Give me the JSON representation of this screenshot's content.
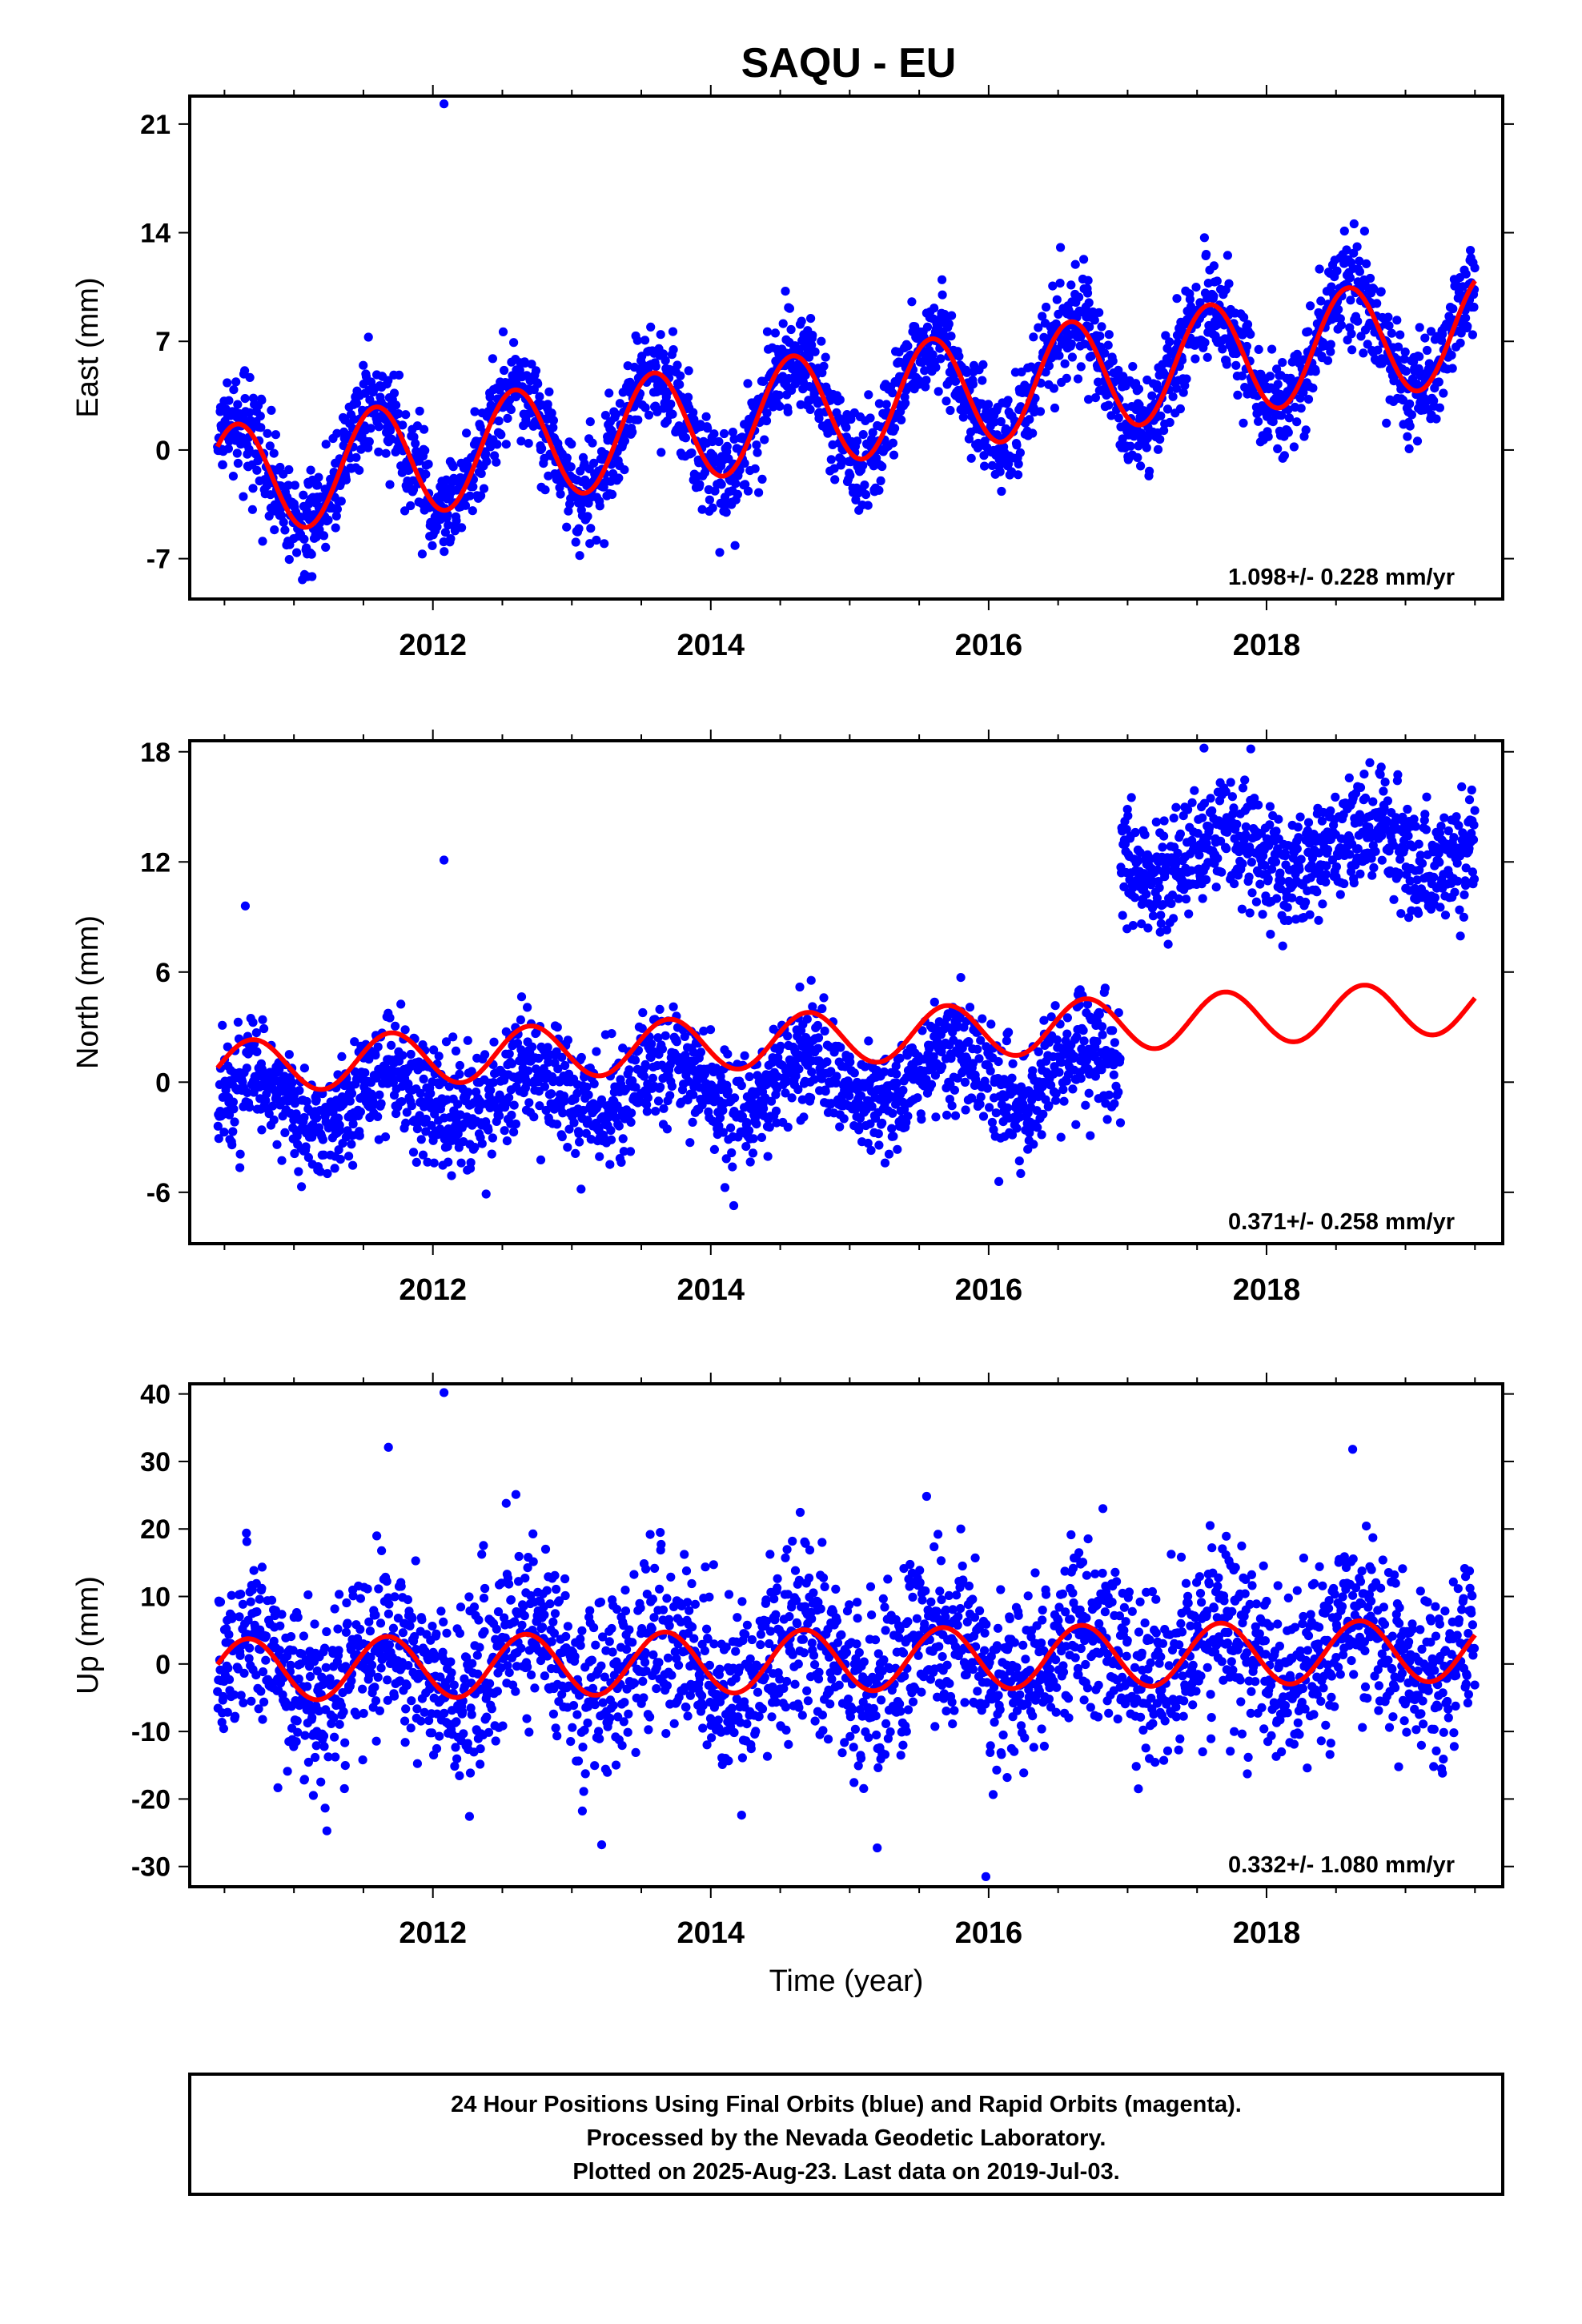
{
  "title": "SAQU - EU",
  "footer": {
    "lines": [
      "24 Hour Positions Using Final Orbits (blue) and Rapid Orbits (magenta).",
      "Processed by the Nevada Geodetic Laboratory.",
      "Plotted on 2025-Aug-23. Last data on 2019-Jul-03."
    ]
  },
  "colors": {
    "points": "#0000ff",
    "model": "#ff0000",
    "frame": "#000000"
  },
  "chart_data": [
    {
      "type": "scatter",
      "name": "east",
      "title": "",
      "xlabel": "",
      "ylabel": "East (mm)",
      "xlim": [
        2010.25,
        2019.7
      ],
      "ylim": [
        -9.6,
        22.8
      ],
      "xticks": [
        2012,
        2014,
        2016,
        2018
      ],
      "yticks": [
        -7,
        0,
        7,
        14,
        21
      ],
      "rate_label": "1.098+/- 0.228 mm/yr",
      "model": {
        "start": -2.3,
        "rate": 1.098,
        "amplitude": 3.6,
        "phase_year": 0.34,
        "offset_year": null,
        "offset": 0
      },
      "scatter": {
        "sigma": 1.6,
        "start_year": 2010.45,
        "end_year": 2019.5
      },
      "outliers": [
        {
          "x": 2012.08,
          "y": 22.3
        }
      ]
    },
    {
      "type": "scatter",
      "name": "north",
      "title": "",
      "xlabel": "",
      "ylabel": "North (mm)",
      "xlim": [
        2010.25,
        2019.7
      ],
      "ylim": [
        -8.8,
        18.6
      ],
      "xticks": [
        2012,
        2014,
        2016,
        2018
      ],
      "yticks": [
        -6,
        0,
        6,
        12,
        18
      ],
      "rate_label": "0.371+/- 0.258 mm/yr",
      "model": {
        "start": 0.7,
        "rate": 0.371,
        "amplitude": 1.45,
        "phase_year": 0.45,
        "offset_year": null,
        "offset": 0
      },
      "scatter": {
        "sigma": 1.55,
        "start_year": 2010.45,
        "end_year": 2019.5,
        "data_start": -1.2,
        "data_rate": 0.28,
        "step_year": 2016.95,
        "step_size": 11.5
      },
      "outliers": [
        {
          "x": 2012.08,
          "y": 12.1
        },
        {
          "x": 2010.65,
          "y": 9.6
        },
        {
          "x": 2017.55,
          "y": 18.2
        }
      ]
    },
    {
      "type": "scatter",
      "name": "up",
      "title": "",
      "xlabel": "Time (year)",
      "ylabel": "Up (mm)",
      "xlim": [
        2010.25,
        2019.7
      ],
      "ylim": [
        -33,
        41.5
      ],
      "xticks": [
        2012,
        2014,
        2016,
        2018
      ],
      "yticks": [
        -30,
        -20,
        -10,
        0,
        10,
        20,
        30,
        40
      ],
      "rate_label": "0.332+/- 1.080 mm/yr",
      "model": {
        "start": -1.0,
        "rate": 0.332,
        "amplitude": 4.6,
        "phase_year": 0.42,
        "offset_year": null,
        "offset": 0
      },
      "scatter": {
        "sigma": 6.5,
        "start_year": 2010.45,
        "end_year": 2019.5
      },
      "outliers": [
        {
          "x": 2012.08,
          "y": 40.2
        },
        {
          "x": 2011.68,
          "y": 32.1
        },
        {
          "x": 2018.62,
          "y": 31.8
        },
        {
          "x": 2015.98,
          "y": -31.5
        }
      ]
    }
  ]
}
